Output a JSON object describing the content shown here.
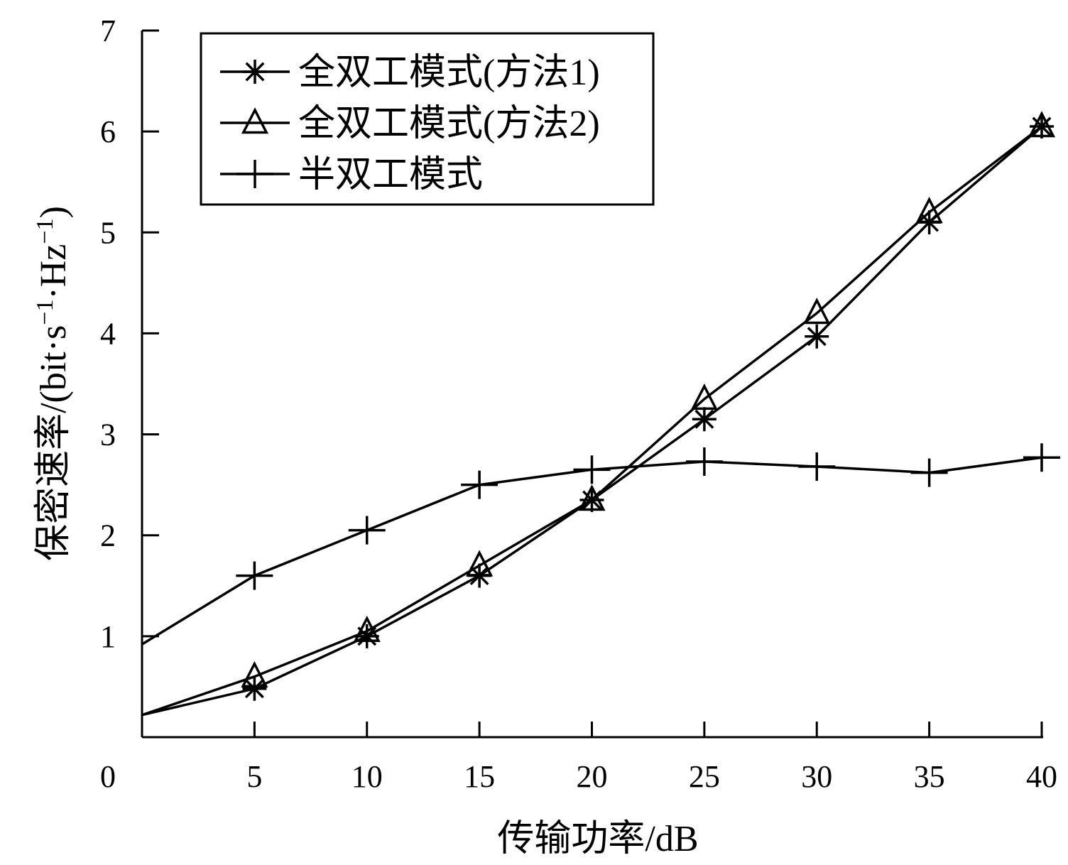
{
  "chart_data": {
    "type": "line",
    "x": [
      0,
      5,
      10,
      15,
      20,
      25,
      30,
      35,
      40
    ],
    "xlabel": "传输功率/dB",
    "ylabel_main": "保密速率/(bit·s",
    "ylabel_sup1": "−1",
    "ylabel_mid": "·Hz",
    "ylabel_sup2": "−1",
    "ylabel_end": ")",
    "xlim": [
      0,
      40
    ],
    "ylim": [
      0,
      7
    ],
    "xticks": [
      0,
      5,
      10,
      15,
      20,
      25,
      30,
      35,
      40
    ],
    "yticks": [
      0,
      1,
      2,
      3,
      4,
      5,
      6,
      7
    ],
    "grid": false,
    "legend_position": "top-left",
    "series": [
      {
        "name": "全双工模式(方法1)",
        "marker": "asterisk",
        "values": [
          0.22,
          0.48,
          1.0,
          1.6,
          2.35,
          3.15,
          3.97,
          5.1,
          6.05
        ]
      },
      {
        "name": "全双工模式(方法2)",
        "marker": "triangle",
        "values": [
          0.22,
          0.6,
          1.05,
          1.7,
          2.35,
          3.35,
          4.2,
          5.2,
          6.05
        ]
      },
      {
        "name": "半双工模式",
        "marker": "plus",
        "values": [
          0.92,
          1.6,
          2.05,
          2.5,
          2.65,
          2.73,
          2.68,
          2.62,
          2.77
        ]
      }
    ]
  }
}
